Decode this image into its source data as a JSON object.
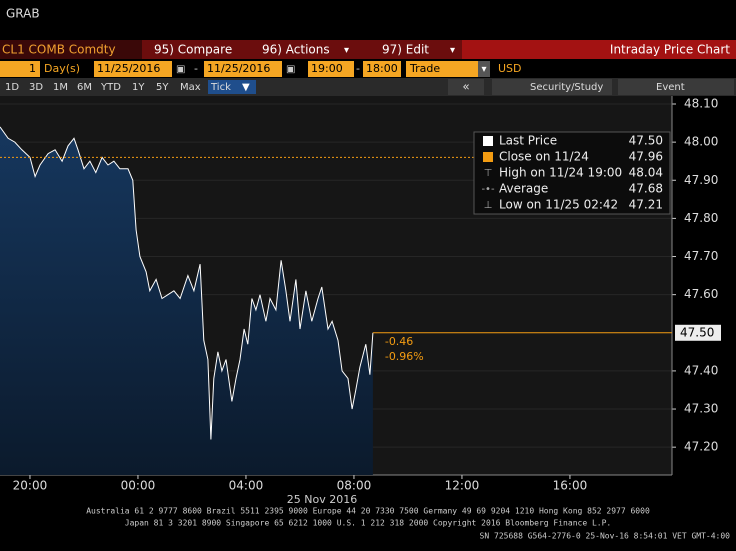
{
  "ui": {
    "window_title": "GRAB",
    "toolbar": {
      "security": "CL1 COMB Comdty",
      "compare": "95) Compare",
      "actions": "96) Actions",
      "edit": "97) Edit",
      "view": "Intraday Price Chart"
    },
    "inputs": {
      "period": "1",
      "unit": "Day(s)",
      "start_date": "11/25/2016",
      "end_date": "11/25/2016",
      "start_time": "19:00",
      "end_time": "18:00",
      "field": "Trade",
      "currency": "USD"
    },
    "ranges": [
      "1D",
      "3D",
      "1M",
      "6M",
      "YTD",
      "1Y",
      "5Y",
      "Max",
      "Tick"
    ],
    "buttons": {
      "collapse": "«",
      "study": "Security/Study",
      "event": "Event"
    }
  },
  "chart_data": {
    "type": "line",
    "x": [
      -5.11,
      -4.81,
      -4.56,
      -4.3,
      -4.0,
      -3.81,
      -3.63,
      -3.33,
      -3.07,
      -2.81,
      -2.59,
      -2.37,
      -2.22,
      -2.0,
      -1.78,
      -1.56,
      -1.33,
      -1.11,
      -0.89,
      -0.67,
      -0.37,
      -0.19,
      -0.07,
      0.07,
      0.3,
      0.44,
      0.67,
      0.89,
      1.11,
      1.33,
      1.56,
      1.85,
      2.07,
      2.3,
      2.44,
      2.59,
      2.7,
      2.81,
      2.96,
      3.11,
      3.26,
      3.48,
      3.63,
      3.78,
      3.93,
      4.07,
      4.22,
      4.37,
      4.52,
      4.74,
      4.89,
      5.11,
      5.3,
      5.48,
      5.63,
      5.85,
      6.0,
      6.22,
      6.44,
      6.67,
      6.81,
      7.04,
      7.19,
      7.41,
      7.56,
      7.78,
      7.93,
      8.07,
      8.22,
      8.44,
      8.59,
      8.7
    ],
    "series": [
      {
        "name": "Last Price",
        "color": "#ffffff",
        "values": [
          48.04,
          48.01,
          48.0,
          47.98,
          47.96,
          47.91,
          47.94,
          47.97,
          47.98,
          47.95,
          47.99,
          48.01,
          47.98,
          47.93,
          47.95,
          47.92,
          47.96,
          47.94,
          47.95,
          47.93,
          47.93,
          47.9,
          47.77,
          47.7,
          47.66,
          47.61,
          47.64,
          47.59,
          47.6,
          47.61,
          47.59,
          47.65,
          47.61,
          47.68,
          47.48,
          47.43,
          47.22,
          47.38,
          47.45,
          47.4,
          47.43,
          47.32,
          47.38,
          47.43,
          47.51,
          47.47,
          47.59,
          47.56,
          47.6,
          47.53,
          47.59,
          47.56,
          47.69,
          47.61,
          47.53,
          47.64,
          47.51,
          47.61,
          47.53,
          47.59,
          47.62,
          47.51,
          47.53,
          47.48,
          47.4,
          47.38,
          47.3,
          47.35,
          47.41,
          47.47,
          47.39,
          47.5
        ]
      }
    ],
    "xlim": [
      -5.11,
      19.78
    ],
    "xticks": [
      {
        "value": -4,
        "label": "20:00"
      },
      {
        "value": 0,
        "label": "00:00"
      },
      {
        "value": 4,
        "label": "04:00"
      },
      {
        "value": 8,
        "label": "08:00"
      },
      {
        "value": 12,
        "label": "12:00"
      },
      {
        "value": 16,
        "label": "16:00"
      }
    ],
    "xlabel": "25 Nov 2016",
    "ylim": [
      47.127,
      48.121
    ],
    "yticks": [
      {
        "value": 47.2,
        "label": "47.20"
      },
      {
        "value": 47.3,
        "label": "47.30"
      },
      {
        "value": 47.4,
        "label": "47.40"
      },
      {
        "value": 47.6,
        "label": "47.60"
      },
      {
        "value": 47.7,
        "label": "47.70"
      },
      {
        "value": 47.8,
        "label": "47.80"
      },
      {
        "value": 47.9,
        "label": "47.90"
      },
      {
        "value": 48.0,
        "label": "48.00"
      },
      {
        "value": 48.1,
        "label": "48.10"
      }
    ],
    "grid": true,
    "stats": {
      "names": [
        "Last Price",
        "Close on 11/24",
        "High on 11/24 19:00",
        "Average",
        "Low on 11/25 02:42"
      ],
      "values": [
        47.5,
        47.96,
        48.04,
        47.68,
        47.21
      ],
      "value_labels": [
        "47.50",
        "47.96",
        "48.04",
        "47.68",
        "47.21"
      ],
      "colors": [
        "#ffffff",
        "#f39c12",
        "#cccccc",
        "#cccccc",
        "#cccccc"
      ]
    },
    "annotations": [
      "-0.46",
      "-0.96%"
    ],
    "footer": [
      "Australia 61 2 9777 8600 Brazil 5511 2395 9000 Europe 44 20 7330 7500 Germany 49 69 9204 1210 Hong Kong 852 2977 6000",
      "Japan 81 3 3201 8900        Singapore 65 6212 1000        U.S. 1 212 318 2000              Copyright 2016 Bloomberg Finance L.P.",
      "SN 725688 G564-2776-0 25-Nov-16  8:54:01 VET  GMT-4:00"
    ]
  }
}
